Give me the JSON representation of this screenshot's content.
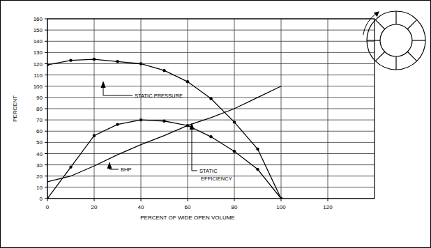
{
  "chart_data": {
    "type": "line",
    "x_label": "PERCENT OF WIDE OPEN VOLUME",
    "y_label": "PERCENT",
    "x": [
      0,
      10,
      20,
      30,
      40,
      50,
      60,
      70,
      80,
      90,
      100
    ],
    "series": [
      {
        "name": "STATIC PRESSURE",
        "color": "#000000",
        "marker": "circle",
        "values": [
          119,
          123,
          124,
          122,
          120,
          114,
          104,
          89,
          68,
          44,
          0
        ]
      },
      {
        "name": "BHP",
        "color": "#000000",
        "marker": "none",
        "values": [
          15,
          20,
          29,
          39,
          48,
          56,
          65,
          72,
          80,
          90,
          100
        ]
      },
      {
        "name": "STATIC EFFICIENCY",
        "color": "#000000",
        "marker": "circle",
        "values": [
          0,
          28,
          56,
          66,
          70,
          69,
          65,
          55,
          42,
          26,
          0
        ]
      }
    ],
    "xlim": [
      0,
      140
    ],
    "xticks": [
      0,
      20,
      40,
      60,
      80,
      100,
      120
    ],
    "ylim": [
      0,
      160
    ],
    "yticks": [
      0,
      10,
      20,
      30,
      40,
      50,
      60,
      70,
      80,
      90,
      100,
      110,
      120,
      130,
      140,
      150,
      160
    ],
    "grid": true
  }
}
